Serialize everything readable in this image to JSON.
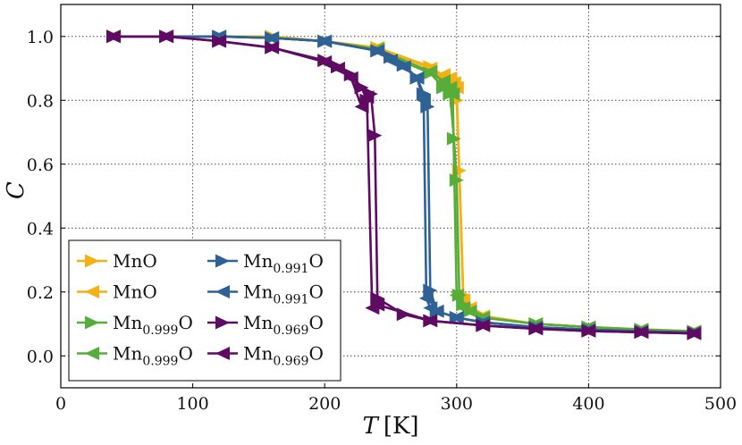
{
  "chart_data": {
    "type": "line",
    "xlabel": "T [K]",
    "xlabel_var": "T",
    "xlabel_unit": "[K]",
    "ylabel": "C",
    "xlim": [
      0,
      500
    ],
    "ylim": [
      -0.1,
      1.1
    ],
    "xticks": [
      0,
      100,
      200,
      300,
      400,
      500
    ],
    "xtick_labels": [
      "0",
      "100",
      "200",
      "300",
      "400",
      "500"
    ],
    "yticks": [
      0.0,
      0.2,
      0.4,
      0.6,
      0.8,
      1.0
    ],
    "ytick_labels": [
      "0.0",
      "0.2",
      "0.4",
      "0.6",
      "0.8",
      "1.0"
    ],
    "grid": true,
    "legend_position": "lower-left",
    "series": [
      {
        "name": "MnO",
        "label_base": "Mn",
        "label_sub": "",
        "label_tail": "O",
        "marker": "right",
        "color": "#f5b014",
        "x": [
          40,
          80,
          120,
          160,
          200,
          240,
          280,
          290,
          295,
          300,
          302,
          305,
          310,
          320,
          360,
          400,
          440,
          480
        ],
        "y": [
          1.0,
          1.0,
          1.0,
          1.0,
          0.985,
          0.965,
          0.905,
          0.87,
          0.85,
          0.8,
          0.58,
          0.19,
          0.155,
          0.125,
          0.1,
          0.09,
          0.083,
          0.077
        ]
      },
      {
        "name": "MnO",
        "label_base": "Mn",
        "label_sub": "",
        "label_tail": "O",
        "marker": "left",
        "color": "#f5b014",
        "x": [
          480,
          440,
          400,
          360,
          320,
          310,
          305,
          300,
          298,
          295,
          290,
          280,
          240,
          200,
          160,
          120,
          80,
          40
        ],
        "y": [
          0.077,
          0.083,
          0.09,
          0.1,
          0.125,
          0.15,
          0.175,
          0.84,
          0.855,
          0.87,
          0.88,
          0.9,
          0.965,
          0.985,
          0.995,
          1.0,
          1.0,
          1.0
        ]
      },
      {
        "name": "Mn0.999O",
        "label_base": "Mn",
        "label_sub": "0.999",
        "label_tail": "O",
        "marker": "right",
        "color": "#56ad3a",
        "x": [
          40,
          80,
          120,
          160,
          200,
          240,
          280,
          290,
          295,
          298,
          300,
          302,
          305,
          310,
          320,
          360,
          400,
          440,
          480
        ],
        "y": [
          1.0,
          1.0,
          1.0,
          0.995,
          0.985,
          0.955,
          0.885,
          0.84,
          0.82,
          0.68,
          0.55,
          0.19,
          0.16,
          0.14,
          0.12,
          0.1,
          0.09,
          0.082,
          0.076
        ]
      },
      {
        "name": "Mn0.999O",
        "label_base": "Mn",
        "label_sub": "0.999",
        "label_tail": "O",
        "marker": "left",
        "color": "#56ad3a",
        "x": [
          480,
          440,
          400,
          360,
          320,
          310,
          305,
          300,
          297,
          295,
          290,
          280,
          240,
          200,
          160,
          120,
          80,
          40
        ],
        "y": [
          0.076,
          0.082,
          0.09,
          0.1,
          0.12,
          0.14,
          0.15,
          0.19,
          0.82,
          0.84,
          0.86,
          0.89,
          0.96,
          0.985,
          0.995,
          1.0,
          1.0,
          1.0
        ]
      },
      {
        "name": "Mn0.991O",
        "label_base": "Mn",
        "label_sub": "0.991",
        "label_tail": "O",
        "marker": "right",
        "color": "#2e6296",
        "x": [
          40,
          80,
          120,
          160,
          200,
          240,
          250,
          260,
          270,
          275,
          278,
          280,
          285,
          300,
          320,
          360,
          400,
          440,
          480
        ],
        "y": [
          1.0,
          1.0,
          1.0,
          0.995,
          0.985,
          0.955,
          0.935,
          0.91,
          0.87,
          0.82,
          0.78,
          0.205,
          0.14,
          0.12,
          0.105,
          0.09,
          0.082,
          0.077,
          0.073
        ]
      },
      {
        "name": "Mn0.991O",
        "label_base": "Mn",
        "label_sub": "0.991",
        "label_tail": "O",
        "marker": "left",
        "color": "#2e6296",
        "x": [
          480,
          440,
          400,
          360,
          320,
          300,
          285,
          280,
          277,
          275,
          270,
          260,
          250,
          240,
          200,
          160,
          120,
          80,
          40
        ],
        "y": [
          0.073,
          0.077,
          0.082,
          0.09,
          0.105,
          0.12,
          0.14,
          0.15,
          0.18,
          0.8,
          0.87,
          0.905,
          0.925,
          0.955,
          0.985,
          0.995,
          1.0,
          1.0,
          1.0
        ]
      },
      {
        "name": "Mn0.969O",
        "label_base": "Mn",
        "label_sub": "0.969",
        "label_tail": "O",
        "marker": "right",
        "color": "#5f0a63",
        "x": [
          40,
          80,
          120,
          160,
          200,
          210,
          220,
          228,
          232,
          235,
          238,
          240,
          260,
          280,
          320,
          360,
          400,
          440,
          480
        ],
        "y": [
          1.0,
          1.0,
          0.985,
          0.965,
          0.925,
          0.905,
          0.88,
          0.84,
          0.8,
          0.82,
          0.69,
          0.18,
          0.13,
          0.11,
          0.095,
          0.085,
          0.078,
          0.074,
          0.07
        ]
      },
      {
        "name": "Mn0.969O",
        "label_base": "Mn",
        "label_sub": "0.969",
        "label_tail": "O",
        "marker": "left",
        "color": "#5f0a63",
        "x": [
          480,
          440,
          400,
          360,
          320,
          280,
          240,
          236,
          232,
          228,
          220,
          210,
          200,
          160,
          120,
          80,
          40
        ],
        "y": [
          0.07,
          0.074,
          0.078,
          0.085,
          0.095,
          0.11,
          0.16,
          0.15,
          0.81,
          0.78,
          0.87,
          0.9,
          0.92,
          0.965,
          0.985,
          1.0,
          1.0
        ]
      }
    ]
  }
}
